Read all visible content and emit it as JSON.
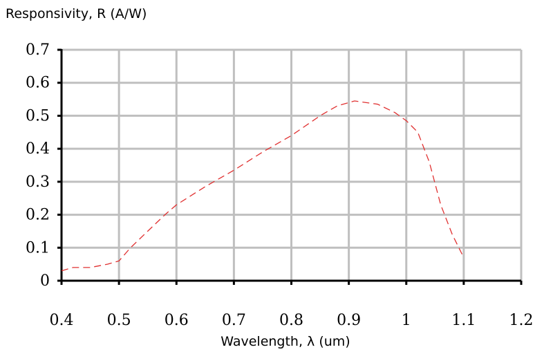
{
  "chart_data": {
    "type": "line",
    "title": "",
    "ylabel": "Responsivity, R (A/W)",
    "xlabel": "Wavelength, λ (um)",
    "xlim": [
      0.4,
      1.2
    ],
    "ylim": [
      0,
      0.7
    ],
    "x_ticks": [
      "0.4",
      "0.5",
      "0.6",
      "0.7",
      "0.8",
      "0.9",
      "1",
      "1.1",
      "1.2"
    ],
    "y_ticks": [
      "0",
      "0.1",
      "0.2",
      "0.3",
      "0.4",
      "0.5",
      "0.6",
      "0.7"
    ],
    "grid": true,
    "legend": "none",
    "series": [
      {
        "color": "#e03030",
        "style": "dashed",
        "x": [
          0.4,
          0.42,
          0.45,
          0.48,
          0.5,
          0.52,
          0.55,
          0.58,
          0.6,
          0.65,
          0.7,
          0.75,
          0.8,
          0.85,
          0.88,
          0.91,
          0.95,
          0.98,
          1.0,
          1.02,
          1.04,
          1.06,
          1.08,
          1.1
        ],
        "y": [
          0.03,
          0.04,
          0.04,
          0.05,
          0.06,
          0.1,
          0.15,
          0.2,
          0.23,
          0.285,
          0.335,
          0.39,
          0.44,
          0.5,
          0.53,
          0.545,
          0.535,
          0.51,
          0.485,
          0.45,
          0.36,
          0.23,
          0.14,
          0.07
        ]
      }
    ]
  }
}
